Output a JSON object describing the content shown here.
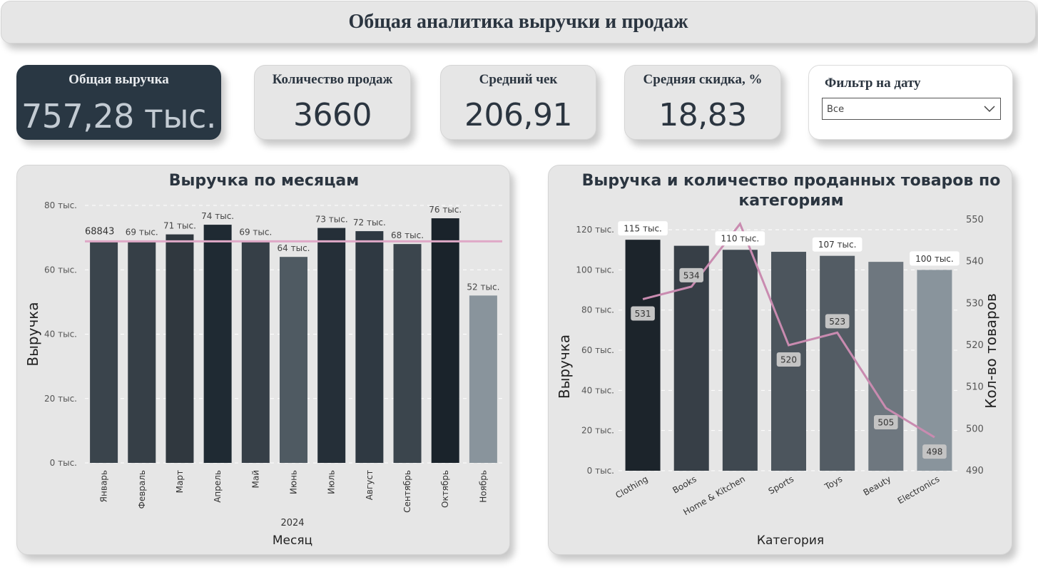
{
  "header": {
    "title": "Общая аналитика выручки и продаж"
  },
  "kpis": {
    "revenue": {
      "label": "Общая выручка",
      "value": "757,28 тыс."
    },
    "sales_count": {
      "label": "Количество продаж",
      "value": "3660"
    },
    "avg_check": {
      "label": "Средний чек",
      "value": "206,91"
    },
    "avg_discount": {
      "label": "Средняя скидка, %",
      "value": "18,83"
    }
  },
  "filter": {
    "label": "Фильтр на дату",
    "selected": "Все"
  },
  "colors": {
    "card_bg": "#e6e6e6",
    "kpi_dark": "#293743",
    "line_pink": "#c98bb0",
    "avg_line": "#dfa9c7"
  },
  "chart_data": [
    {
      "type": "bar",
      "title": "Выручка по месяцам",
      "xlabel": "Месяц",
      "x_group_label": "2024",
      "ylabel": "Выручка",
      "ylim": [
        0,
        80000
      ],
      "y_ticks": [
        0,
        20000,
        40000,
        60000,
        80000
      ],
      "y_tick_labels": [
        "0 тыс.",
        "20 тыс.",
        "40 тыс.",
        "60 тыс.",
        "80 тыс."
      ],
      "grid": true,
      "categories": [
        "Январь",
        "Февраль",
        "Март",
        "Апрель",
        "Май",
        "Июнь",
        "Июль",
        "Август",
        "Сентябрь",
        "Октябрь",
        "Ноябрь"
      ],
      "values": [
        68843,
        69000,
        71000,
        74000,
        69000,
        64000,
        73000,
        72000,
        68000,
        76000,
        52000
      ],
      "data_labels": [
        "",
        "69 тыс.",
        "71 тыс.",
        "74 тыс.",
        "69 тыс.",
        "64 тыс.",
        "73 тыс.",
        "72 тыс.",
        "68 тыс.",
        "76 тыс.",
        "52 тыс."
      ],
      "bar_colors": [
        "#3a444c",
        "#363f47",
        "#30383f",
        "#1f2a33",
        "#363f47",
        "#4f5a62",
        "#252f38",
        "#2f3942",
        "#3b454d",
        "#1a232b",
        "#89949c"
      ],
      "reference_line": {
        "value": 68843,
        "label": "68843"
      }
    },
    {
      "type": "bar",
      "title": "Выручка и количество проданных товаров по категориям",
      "xlabel": "Категория",
      "ylabel": "Выручка",
      "y2label": "Кол-во товаров",
      "ylim": [
        0,
        125000
      ],
      "y_ticks": [
        0,
        20000,
        40000,
        60000,
        80000,
        100000,
        120000
      ],
      "y_tick_labels": [
        "0 тыс.",
        "20 тыс.",
        "40 тыс.",
        "60 тыс.",
        "80 тыс.",
        "100 тыс.",
        "120 тыс."
      ],
      "y2lim": [
        490,
        550
      ],
      "y2_ticks": [
        490,
        500,
        510,
        520,
        530,
        540,
        550
      ],
      "y2_tick_labels": [
        "490",
        "500",
        "510",
        "520",
        "530",
        "540",
        "550"
      ],
      "grid": true,
      "categories": [
        "Clothing",
        "Books",
        "Home & Kitchen",
        "Sports",
        "Toys",
        "Beauty",
        "Electronics"
      ],
      "series": [
        {
          "name": "Выручка",
          "type": "bar",
          "values": [
            115000,
            112000,
            110000,
            109000,
            107000,
            104000,
            100000
          ],
          "data_labels": [
            "115 тыс.",
            "",
            "110 тыс.",
            "",
            "107 тыс.",
            "",
            "100 тыс."
          ]
        },
        {
          "name": "Кол-во товаров",
          "type": "line",
          "values": [
            531,
            534,
            549,
            520,
            523,
            505,
            498
          ],
          "data_labels": [
            "531",
            "534",
            "",
            "520",
            "523",
            "505",
            "498"
          ]
        }
      ],
      "bar_colors": [
        "#1c242b",
        "#373f47",
        "#3f4850",
        "#4c555d",
        "#535c64",
        "#6e777f",
        "#89949c"
      ]
    }
  ]
}
